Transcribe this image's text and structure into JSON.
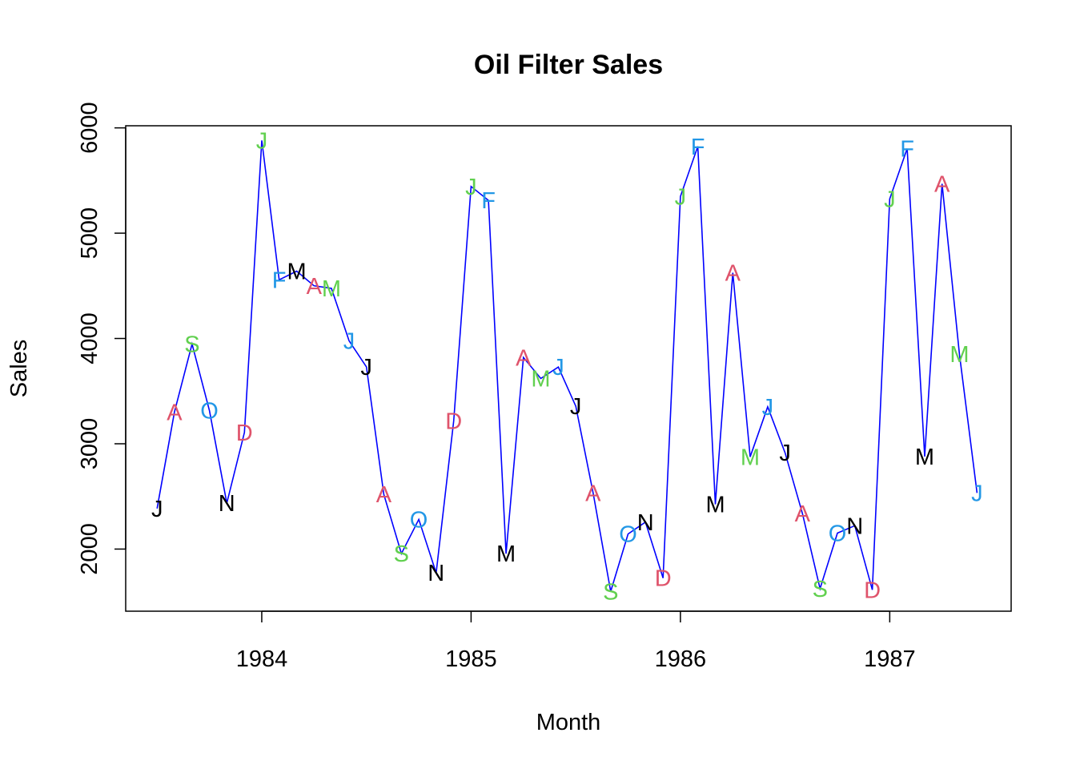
{
  "chart_data": {
    "type": "line",
    "title": "Oil Filter Sales",
    "xlabel": "Month",
    "ylabel": "Sales",
    "xlim": [
      1983.35,
      1987.58
    ],
    "ylim": [
      1410,
      6020
    ],
    "x_ticks": [
      {
        "value": 1984,
        "label": "1984"
      },
      {
        "value": 1985,
        "label": "1985"
      },
      {
        "value": 1986,
        "label": "1986"
      },
      {
        "value": 1987,
        "label": "1987"
      }
    ],
    "y_ticks": [
      {
        "value": 2000,
        "label": "2000"
      },
      {
        "value": 3000,
        "label": "3000"
      },
      {
        "value": 4000,
        "label": "4000"
      },
      {
        "value": 5000,
        "label": "5000"
      },
      {
        "value": 6000,
        "label": "6000"
      }
    ],
    "grid": false,
    "line_color": "#0000FF",
    "month_colors": {
      "J": "#000000",
      "F": "#2297E6",
      "M": "#000000",
      "A": "#DF536B",
      "M2": "#61D04F",
      "J2": "#2297E6",
      "J3": "#000000",
      "A2": "#DF536B",
      "S": "#61D04F",
      "O": "#2297E6",
      "N": "#000000",
      "D": "#DF536B"
    },
    "series": [
      {
        "values": [
          {
            "x": 1983.5,
            "y": 2385,
            "label": "J",
            "color": "#000000"
          },
          {
            "x": 1983.583,
            "y": 3302,
            "label": "A",
            "color": "#DF536B"
          },
          {
            "x": 1983.667,
            "y": 3948,
            "label": "S",
            "color": "#61D04F"
          },
          {
            "x": 1983.75,
            "y": 3315,
            "label": "O",
            "color": "#2297E6"
          },
          {
            "x": 1983.833,
            "y": 2436,
            "label": "N",
            "color": "#000000"
          },
          {
            "x": 1983.917,
            "y": 3107,
            "label": "D",
            "color": "#DF536B"
          },
          {
            "x": 1984.0,
            "y": 5881,
            "label": "J",
            "color": "#61D04F"
          },
          {
            "x": 1984.083,
            "y": 4557,
            "label": "F",
            "color": "#2297E6"
          },
          {
            "x": 1984.167,
            "y": 4639,
            "label": "M",
            "color": "#000000"
          },
          {
            "x": 1984.25,
            "y": 4500,
            "label": "A",
            "color": "#DF536B"
          },
          {
            "x": 1984.333,
            "y": 4476,
            "label": "M",
            "color": "#61D04F"
          },
          {
            "x": 1984.417,
            "y": 3978,
            "label": "J",
            "color": "#2297E6"
          },
          {
            "x": 1984.5,
            "y": 3730,
            "label": "J",
            "color": "#000000"
          },
          {
            "x": 1984.583,
            "y": 2520,
            "label": "A",
            "color": "#DF536B"
          },
          {
            "x": 1984.667,
            "y": 1957,
            "label": "S",
            "color": "#61D04F"
          },
          {
            "x": 1984.75,
            "y": 2282,
            "label": "O",
            "color": "#2297E6"
          },
          {
            "x": 1984.833,
            "y": 1774,
            "label": "N",
            "color": "#000000"
          },
          {
            "x": 1984.917,
            "y": 3216,
            "label": "D",
            "color": "#DF536B"
          },
          {
            "x": 1985.0,
            "y": 5443,
            "label": "J",
            "color": "#61D04F"
          },
          {
            "x": 1985.083,
            "y": 5312,
            "label": "F",
            "color": "#2297E6"
          },
          {
            "x": 1985.167,
            "y": 1956,
            "label": "M",
            "color": "#000000"
          },
          {
            "x": 1985.25,
            "y": 3819,
            "label": "A",
            "color": "#DF536B"
          },
          {
            "x": 1985.333,
            "y": 3620,
            "label": "M",
            "color": "#61D04F"
          },
          {
            "x": 1985.417,
            "y": 3729,
            "label": "J",
            "color": "#2297E6"
          },
          {
            "x": 1985.5,
            "y": 3357,
            "label": "J",
            "color": "#000000"
          },
          {
            "x": 1985.583,
            "y": 2531,
            "label": "A",
            "color": "#DF536B"
          },
          {
            "x": 1985.667,
            "y": 1597,
            "label": "S",
            "color": "#61D04F"
          },
          {
            "x": 1985.75,
            "y": 2143,
            "label": "O",
            "color": "#2297E6"
          },
          {
            "x": 1985.833,
            "y": 2256,
            "label": "N",
            "color": "#000000"
          },
          {
            "x": 1985.917,
            "y": 1725,
            "label": "D",
            "color": "#DF536B"
          },
          {
            "x": 1986.0,
            "y": 5348,
            "label": "J",
            "color": "#61D04F"
          },
          {
            "x": 1986.083,
            "y": 5824,
            "label": "F",
            "color": "#2297E6"
          },
          {
            "x": 1986.167,
            "y": 2425,
            "label": "M",
            "color": "#000000"
          },
          {
            "x": 1986.25,
            "y": 4624,
            "label": "A",
            "color": "#DF536B"
          },
          {
            "x": 1986.333,
            "y": 2876,
            "label": "M",
            "color": "#61D04F"
          },
          {
            "x": 1986.417,
            "y": 3351,
            "label": "J",
            "color": "#2297E6"
          },
          {
            "x": 1986.5,
            "y": 2915,
            "label": "J",
            "color": "#000000"
          },
          {
            "x": 1986.583,
            "y": 2337,
            "label": "A",
            "color": "#DF536B"
          },
          {
            "x": 1986.667,
            "y": 1624,
            "label": "S",
            "color": "#61D04F"
          },
          {
            "x": 1986.75,
            "y": 2152,
            "label": "O",
            "color": "#2297E6"
          },
          {
            "x": 1986.833,
            "y": 2222,
            "label": "N",
            "color": "#000000"
          },
          {
            "x": 1986.917,
            "y": 1613,
            "label": "D",
            "color": "#DF536B"
          },
          {
            "x": 1987.0,
            "y": 5325,
            "label": "J",
            "color": "#61D04F"
          },
          {
            "x": 1987.083,
            "y": 5803,
            "label": "F",
            "color": "#2297E6"
          },
          {
            "x": 1987.167,
            "y": 2879,
            "label": "M",
            "color": "#000000"
          },
          {
            "x": 1987.25,
            "y": 5469,
            "label": "A",
            "color": "#DF536B"
          },
          {
            "x": 1987.333,
            "y": 3851,
            "label": "M",
            "color": "#61D04F"
          },
          {
            "x": 1987.417,
            "y": 2533,
            "label": "J",
            "color": "#2297E6"
          }
        ]
      }
    ]
  }
}
